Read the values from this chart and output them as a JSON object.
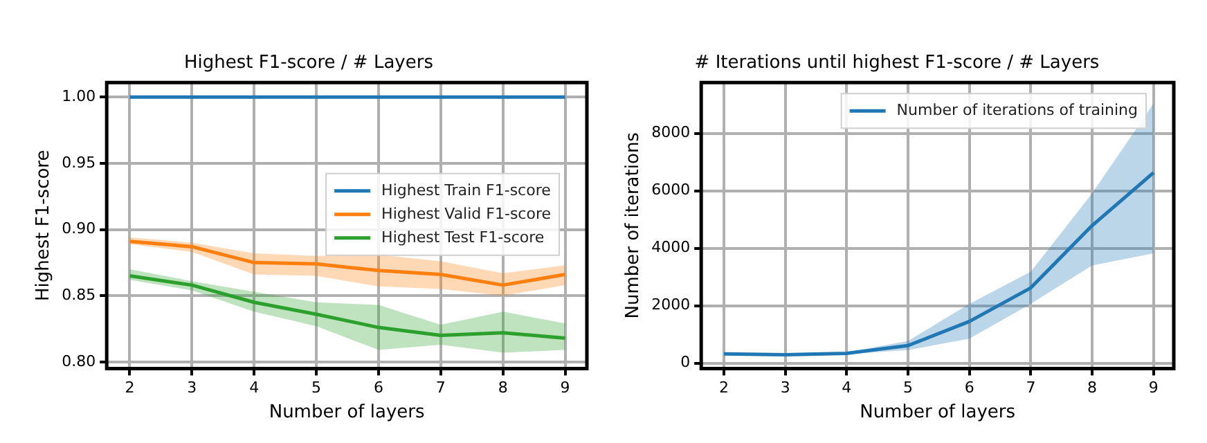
{
  "chart_data": [
    {
      "type": "line",
      "title": "Highest F1-score / # Layers",
      "xlabel": "Number of layers",
      "ylabel": "Highest F1-score",
      "x": [
        2,
        3,
        4,
        5,
        6,
        7,
        8,
        9
      ],
      "series": [
        {
          "name": "Highest Train F1-score",
          "color": "#1f77b4",
          "values": [
            1.0,
            1.0,
            1.0,
            1.0,
            1.0,
            1.0,
            1.0,
            1.0
          ]
        },
        {
          "name": "Highest Valid F1-score",
          "color": "#ff7f0e",
          "values": [
            0.891,
            0.887,
            0.875,
            0.874,
            0.869,
            0.866,
            0.858,
            0.866
          ],
          "lower": [
            0.889,
            0.883,
            0.866,
            0.865,
            0.857,
            0.855,
            0.85,
            0.858
          ],
          "upper": [
            0.894,
            0.89,
            0.882,
            0.88,
            0.881,
            0.876,
            0.867,
            0.873
          ]
        },
        {
          "name": "Highest Test F1-score",
          "color": "#2ca02c",
          "values": [
            0.865,
            0.858,
            0.845,
            0.836,
            0.826,
            0.82,
            0.822,
            0.818
          ],
          "lower": [
            0.862,
            0.854,
            0.838,
            0.827,
            0.809,
            0.813,
            0.807,
            0.809
          ],
          "upper": [
            0.87,
            0.861,
            0.853,
            0.845,
            0.843,
            0.828,
            0.838,
            0.829
          ]
        }
      ],
      "xlim": [
        1.63,
        9.35
      ],
      "xticks": [
        2,
        3,
        4,
        5,
        6,
        7,
        8,
        9
      ],
      "ylim": [
        0.795,
        1.011
      ],
      "yticks": [
        {
          "value": 0.8,
          "label": "0.80"
        },
        {
          "value": 0.85,
          "label": "0.85"
        },
        {
          "value": 0.9,
          "label": "0.90"
        },
        {
          "value": 0.95,
          "label": "0.95"
        },
        {
          "value": 1.0,
          "label": "1.00"
        }
      ],
      "grid": true,
      "legend": "center right",
      "marker": "none",
      "line_style": "solid"
    },
    {
      "type": "line",
      "title": "# Iterations until highest F1-score / # Layers",
      "xlabel": "Number of layers",
      "ylabel": "Number of iterations",
      "x": [
        2,
        3,
        4,
        5,
        6,
        7,
        8,
        9
      ],
      "series": [
        {
          "name": "Number of iterations of training",
          "color": "#1f77b4",
          "values": [
            320,
            290,
            340,
            610,
            1450,
            2620,
            4790,
            6630
          ],
          "lower": [
            290,
            260,
            310,
            450,
            850,
            2060,
            3400,
            3820
          ],
          "upper": [
            350,
            320,
            370,
            770,
            2060,
            3180,
            5910,
            9040
          ]
        }
      ],
      "xlim": [
        1.63,
        9.33
      ],
      "xticks": [
        2,
        3,
        4,
        5,
        6,
        7,
        8,
        9
      ],
      "ylim": [
        -190,
        9770
      ],
      "yticks": [
        0,
        2000,
        4000,
        6000,
        8000
      ],
      "grid": true,
      "legend": "top right",
      "marker": "none",
      "line_style": "solid"
    }
  ]
}
